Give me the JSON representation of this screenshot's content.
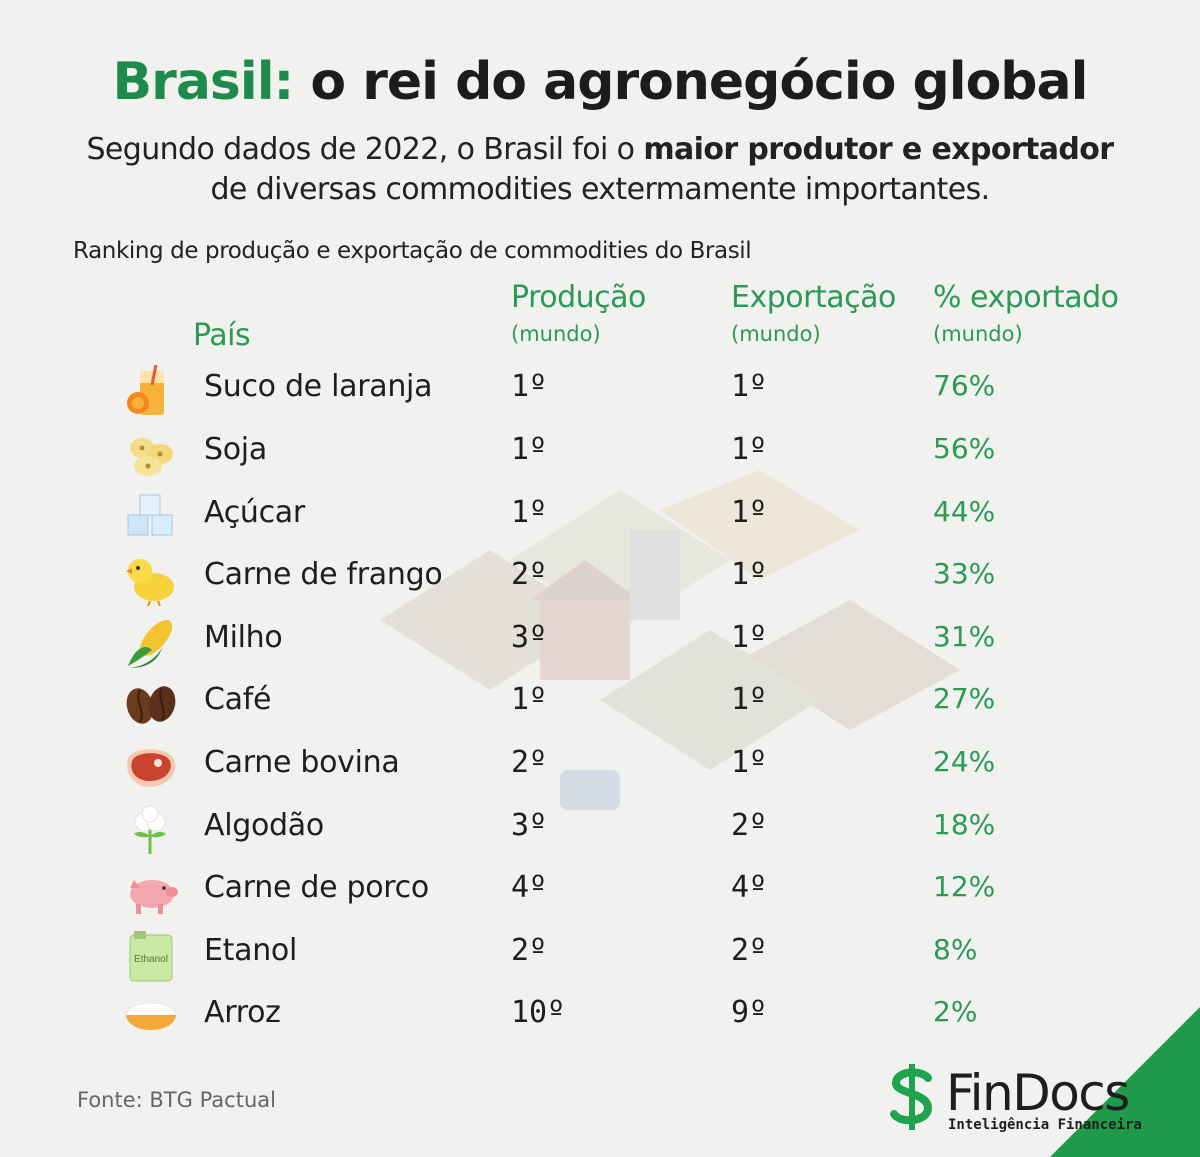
{
  "header": {
    "title_accent": "Brasil:",
    "title_rest": " o rei do agronegócio global",
    "subtitle_line1_plain": "Segundo dados de 2022, o Brasil foi o ",
    "subtitle_line1_bold": "maior produtor e exportador",
    "subtitle_line2": "de diversas commodities extermamente importantes."
  },
  "table": {
    "caption": "Ranking de produção e exportação de commodities do Brasil",
    "columns": {
      "country": "País",
      "production": "Produção",
      "production_sub": "(mundo)",
      "export": "Exportação",
      "export_sub": "(mundo)",
      "pct": "% exportado",
      "pct_sub": "(mundo)"
    },
    "rows": [
      {
        "icon": "orange-juice-icon",
        "name": "Suco de laranja",
        "production": "1º",
        "export": "1º",
        "pct": "76%"
      },
      {
        "icon": "soybean-icon",
        "name": "Soja",
        "production": "1º",
        "export": "1º",
        "pct": "56%"
      },
      {
        "icon": "sugar-cubes-icon",
        "name": "Açúcar",
        "production": "1º",
        "export": "1º",
        "pct": "44%"
      },
      {
        "icon": "chick-icon",
        "name": "Carne de frango",
        "production": "2º",
        "export": "1º",
        "pct": "33%"
      },
      {
        "icon": "corn-icon",
        "name": "Milho",
        "production": "3º",
        "export": "1º",
        "pct": "31%"
      },
      {
        "icon": "coffee-bean-icon",
        "name": "Café",
        "production": "1º",
        "export": "1º",
        "pct": "27%"
      },
      {
        "icon": "steak-icon",
        "name": "Carne bovina",
        "production": "2º",
        "export": "1º",
        "pct": "24%"
      },
      {
        "icon": "cotton-icon",
        "name": "Algodão",
        "production": "3º",
        "export": "2º",
        "pct": "18%"
      },
      {
        "icon": "pig-icon",
        "name": "Carne de porco",
        "production": "4º",
        "export": "4º",
        "pct": "12%"
      },
      {
        "icon": "ethanol-can-icon",
        "name": "Etanol",
        "production": "2º",
        "export": "2º",
        "pct": "8%"
      },
      {
        "icon": "rice-bowl-icon",
        "name": "Arroz",
        "production": "10º",
        "export": "9º",
        "pct": "2%"
      }
    ],
    "ethanol_label": "Ethanol"
  },
  "footer": {
    "source": "Fonte: BTG Pactual",
    "brand": "FinDocs",
    "tagline": "Inteligência Financeira"
  },
  "colors": {
    "accent_green": "#1e8a4c",
    "table_green": "#2a9a55",
    "corner_green": "#1f9a4a",
    "background": "#f1f1ef"
  }
}
